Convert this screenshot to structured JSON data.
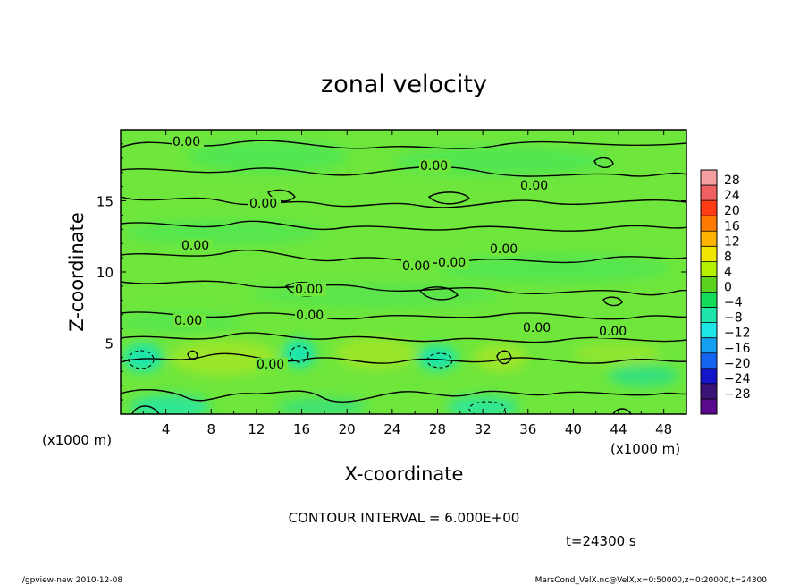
{
  "chart_data": {
    "type": "heatmap",
    "title": "zonal velocity",
    "xlabel": "X-coordinate",
    "ylabel": "Z-coordinate",
    "x_unit": "(x1000 m)",
    "y_unit": "(x1000 m)",
    "xlim": [
      0,
      50
    ],
    "ylim": [
      0,
      20
    ],
    "x_ticks": [
      4,
      8,
      12,
      16,
      20,
      24,
      28,
      32,
      36,
      40,
      44,
      48
    ],
    "y_ticks": [
      5,
      10,
      15
    ],
    "colorbar_levels": [
      28,
      24,
      20,
      16,
      12,
      8,
      4,
      0,
      -4,
      -8,
      -12,
      -16,
      -20,
      -24,
      -28
    ],
    "colorbar_colors": [
      "#f4a0a0",
      "#f06060",
      "#ff3c14",
      "#ff7a00",
      "#ffb400",
      "#f0e600",
      "#b4f000",
      "#5ad21e",
      "#14dc5a",
      "#1ee6aa",
      "#1ee6e6",
      "#14a0f0",
      "#1464f0",
      "#1414c8",
      "#3c1478",
      "#5a0a8c"
    ],
    "contour_labels": [
      "0.00",
      "0.00",
      "0.00",
      "0.00",
      "0.00",
      "0.00",
      "0.00",
      "0.00",
      "0.00",
      "0.00",
      "0.00",
      "0.00",
      "0.00",
      "0.00"
    ],
    "contour_interval_text": "CONTOUR INTERVAL = 6.000E+00",
    "time_text": "t=24300 s",
    "background_color": "#6ee63c"
  },
  "footer": {
    "left": "./gpview-new   2010-12-08",
    "right": "MarsCond_VelX.nc@VelX,x=0:50000,z=0:20000,t=24300"
  }
}
